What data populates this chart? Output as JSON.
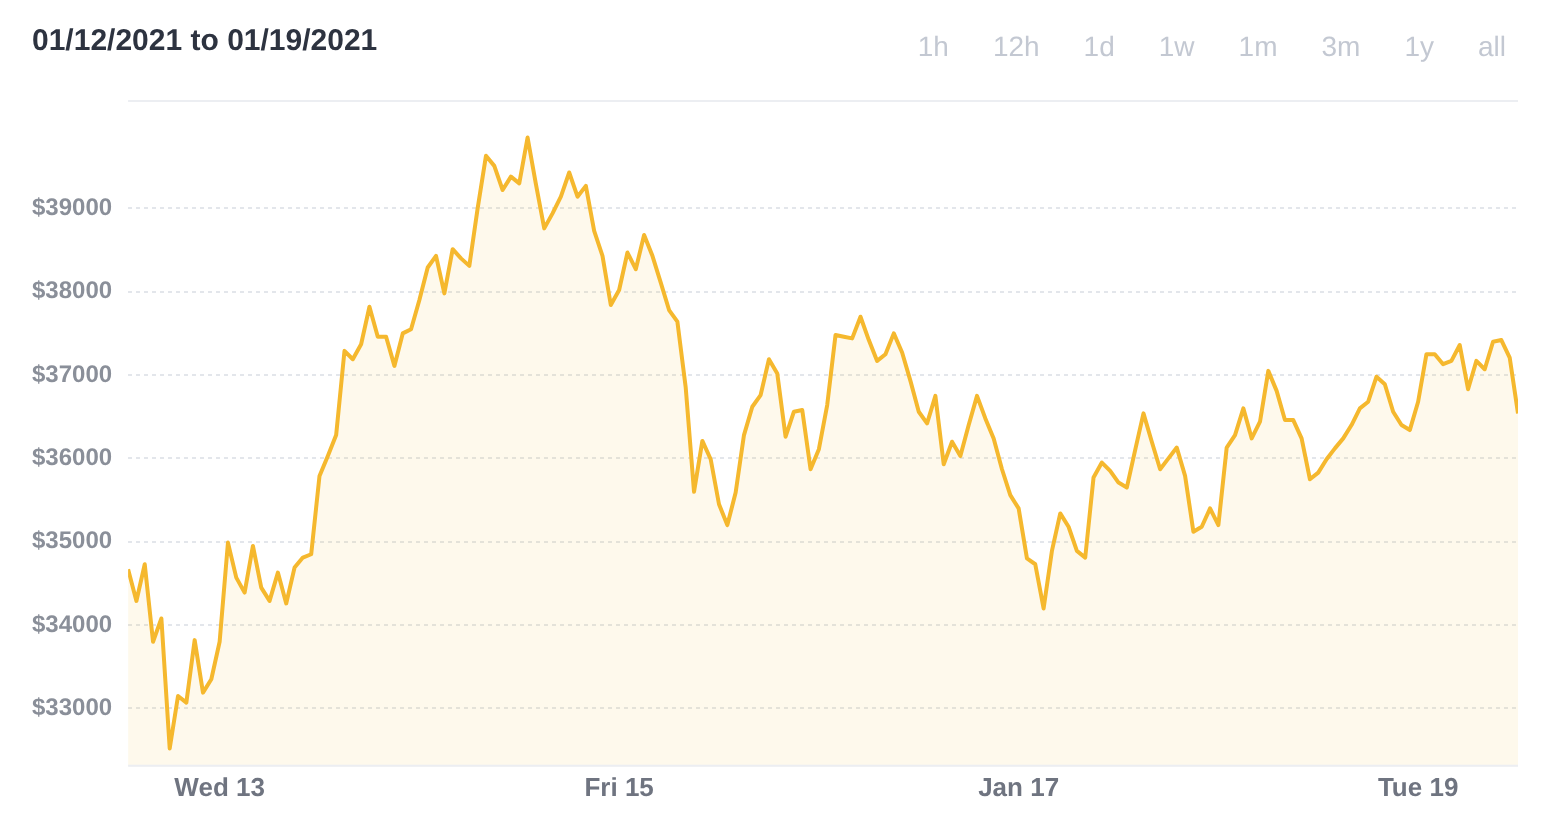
{
  "chart_data": {
    "type": "area",
    "title": "01/12/2021 to 01/19/2021",
    "annotations": [
      "1h",
      "12h",
      "1d",
      "1w",
      "1m",
      "3m",
      "1y",
      "all"
    ],
    "x": [
      "2021-01-12T13:00",
      "2021-01-12T14:00",
      "2021-01-12T15:00",
      "2021-01-12T16:00",
      "2021-01-12T17:00",
      "2021-01-12T18:00",
      "2021-01-12T19:00",
      "2021-01-12T20:00",
      "2021-01-12T21:00",
      "2021-01-12T22:00",
      "2021-01-12T23:00",
      "2021-01-13T00:00",
      "2021-01-13T01:00",
      "2021-01-13T02:00",
      "2021-01-13T03:00",
      "2021-01-13T04:00",
      "2021-01-13T05:00",
      "2021-01-13T06:00",
      "2021-01-13T07:00",
      "2021-01-13T08:00",
      "2021-01-13T09:00",
      "2021-01-13T10:00",
      "2021-01-13T11:00",
      "2021-01-13T12:00",
      "2021-01-13T13:00",
      "2021-01-13T14:00",
      "2021-01-13T15:00",
      "2021-01-13T16:00",
      "2021-01-13T17:00",
      "2021-01-13T18:00",
      "2021-01-13T19:00",
      "2021-01-13T20:00",
      "2021-01-13T21:00",
      "2021-01-13T22:00",
      "2021-01-13T23:00",
      "2021-01-14T00:00",
      "2021-01-14T01:00",
      "2021-01-14T02:00",
      "2021-01-14T03:00",
      "2021-01-14T04:00",
      "2021-01-14T05:00",
      "2021-01-14T06:00",
      "2021-01-14T07:00",
      "2021-01-14T08:00",
      "2021-01-14T09:00",
      "2021-01-14T10:00",
      "2021-01-14T11:00",
      "2021-01-14T12:00",
      "2021-01-14T13:00",
      "2021-01-14T14:00",
      "2021-01-14T15:00",
      "2021-01-14T16:00",
      "2021-01-14T17:00",
      "2021-01-14T18:00",
      "2021-01-14T19:00",
      "2021-01-14T20:00",
      "2021-01-14T21:00",
      "2021-01-14T22:00",
      "2021-01-14T23:00",
      "2021-01-15T00:00",
      "2021-01-15T01:00",
      "2021-01-15T02:00",
      "2021-01-15T03:00",
      "2021-01-15T04:00",
      "2021-01-15T05:00",
      "2021-01-15T06:00",
      "2021-01-15T07:00",
      "2021-01-15T08:00",
      "2021-01-15T09:00",
      "2021-01-15T10:00",
      "2021-01-15T11:00",
      "2021-01-15T12:00",
      "2021-01-15T13:00",
      "2021-01-15T14:00",
      "2021-01-15T15:00",
      "2021-01-15T16:00",
      "2021-01-15T17:00",
      "2021-01-15T18:00",
      "2021-01-15T19:00",
      "2021-01-15T20:00",
      "2021-01-15T21:00",
      "2021-01-15T22:00",
      "2021-01-15T23:00",
      "2021-01-16T00:00",
      "2021-01-16T01:00",
      "2021-01-16T02:00",
      "2021-01-16T03:00",
      "2021-01-16T04:00",
      "2021-01-16T05:00",
      "2021-01-16T06:00",
      "2021-01-16T07:00",
      "2021-01-16T08:00",
      "2021-01-16T09:00",
      "2021-01-16T10:00",
      "2021-01-16T11:00",
      "2021-01-16T12:00",
      "2021-01-16T13:00",
      "2021-01-16T14:00",
      "2021-01-16T15:00",
      "2021-01-16T16:00",
      "2021-01-16T17:00",
      "2021-01-16T18:00",
      "2021-01-16T19:00",
      "2021-01-16T20:00",
      "2021-01-16T21:00",
      "2021-01-16T22:00",
      "2021-01-16T23:00",
      "2021-01-17T00:00",
      "2021-01-17T01:00",
      "2021-01-17T02:00",
      "2021-01-17T03:00",
      "2021-01-17T04:00",
      "2021-01-17T05:00",
      "2021-01-17T06:00",
      "2021-01-17T07:00",
      "2021-01-17T08:00",
      "2021-01-17T09:00",
      "2021-01-17T10:00",
      "2021-01-17T11:00",
      "2021-01-17T12:00",
      "2021-01-17T13:00",
      "2021-01-17T14:00",
      "2021-01-17T15:00",
      "2021-01-17T16:00",
      "2021-01-17T17:00",
      "2021-01-17T18:00",
      "2021-01-17T19:00",
      "2021-01-17T20:00",
      "2021-01-17T21:00",
      "2021-01-17T22:00",
      "2021-01-17T23:00",
      "2021-01-18T00:00",
      "2021-01-18T01:00",
      "2021-01-18T02:00",
      "2021-01-18T03:00",
      "2021-01-18T04:00",
      "2021-01-18T05:00",
      "2021-01-18T06:00",
      "2021-01-18T07:00",
      "2021-01-18T08:00",
      "2021-01-18T09:00",
      "2021-01-18T10:00",
      "2021-01-18T11:00",
      "2021-01-18T12:00",
      "2021-01-18T13:00",
      "2021-01-18T14:00",
      "2021-01-18T15:00",
      "2021-01-18T16:00",
      "2021-01-18T17:00",
      "2021-01-18T18:00",
      "2021-01-18T19:00",
      "2021-01-18T20:00",
      "2021-01-18T21:00",
      "2021-01-18T22:00",
      "2021-01-18T23:00",
      "2021-01-19T00:00",
      "2021-01-19T01:00",
      "2021-01-19T02:00",
      "2021-01-19T03:00",
      "2021-01-19T04:00",
      "2021-01-19T05:00",
      "2021-01-19T06:00",
      "2021-01-19T07:00",
      "2021-01-19T08:00",
      "2021-01-19T09:00",
      "2021-01-19T10:00",
      "2021-01-19T11:00",
      "2021-01-19T12:00"
    ],
    "series": [
      {
        "color": "#f5b82e",
        "values": [
          34670,
          34290,
          34730,
          33800,
          34080,
          32520,
          33150,
          33070,
          33820,
          33190,
          33350,
          33800,
          34990,
          34570,
          34390,
          34950,
          34450,
          34290,
          34630,
          34260,
          34690,
          34810,
          34850,
          35790,
          36030,
          36280,
          37290,
          37190,
          37370,
          37820,
          37460,
          37460,
          37110,
          37500,
          37550,
          37900,
          38290,
          38430,
          37980,
          38510,
          38400,
          38310,
          39000,
          39630,
          39510,
          39220,
          39380,
          39300,
          39850,
          39290,
          38760,
          38940,
          39140,
          39430,
          39140,
          39270,
          38730,
          38430,
          37840,
          38020,
          38470,
          38270,
          38680,
          38430,
          38110,
          37780,
          37640,
          36850,
          35600,
          36210,
          35990,
          35450,
          35200,
          35590,
          36280,
          36620,
          36760,
          37190,
          37020,
          36260,
          36560,
          36580,
          35870,
          36110,
          36640,
          37480,
          37460,
          37440,
          37700,
          37420,
          37170,
          37250,
          37500,
          37270,
          36930,
          36560,
          36420,
          36750,
          35930,
          36200,
          36030,
          36400,
          36750,
          36480,
          36240,
          35870,
          35560,
          35400,
          34800,
          34730,
          34200,
          34890,
          35340,
          35180,
          34890,
          34810,
          35770,
          35950,
          35850,
          35710,
          35650,
          36100,
          36540,
          36200,
          35870,
          36000,
          36130,
          35790,
          35120,
          35180,
          35400,
          35200,
          36130,
          36280,
          36600,
          36240,
          36440,
          37050,
          36810,
          36460,
          36460,
          36240,
          35750,
          35830,
          35990,
          36120,
          36240,
          36400,
          36600,
          36680,
          36980,
          36890,
          36560,
          36400,
          36340,
          36680,
          37250,
          37250,
          37130,
          37170,
          37360,
          36830,
          37170,
          37070,
          37400,
          37420,
          37210,
          36540
        ]
      }
    ],
    "xlim": [
      "2021-01-12T13:00",
      "2021-01-19T12:00"
    ],
    "xticks": [
      {
        "value": "2021-01-13T00:00",
        "label": "Wed 13"
      },
      {
        "value": "2021-01-15T00:00",
        "label": "Fri 15"
      },
      {
        "value": "2021-01-17T00:00",
        "label": "Jan 17"
      },
      {
        "value": "2021-01-19T00:00",
        "label": "Tue 19"
      }
    ],
    "ylim": [
      32300,
      40300
    ],
    "yticks": [
      {
        "value": 33000,
        "label": "$33000"
      },
      {
        "value": 34000,
        "label": "$34000"
      },
      {
        "value": 35000,
        "label": "$35000"
      },
      {
        "value": 36000,
        "label": "$36000"
      },
      {
        "value": 37000,
        "label": "$37000"
      },
      {
        "value": 38000,
        "label": "$38000"
      },
      {
        "value": 39000,
        "label": "$39000"
      }
    ],
    "grid": "y",
    "legend": false
  }
}
